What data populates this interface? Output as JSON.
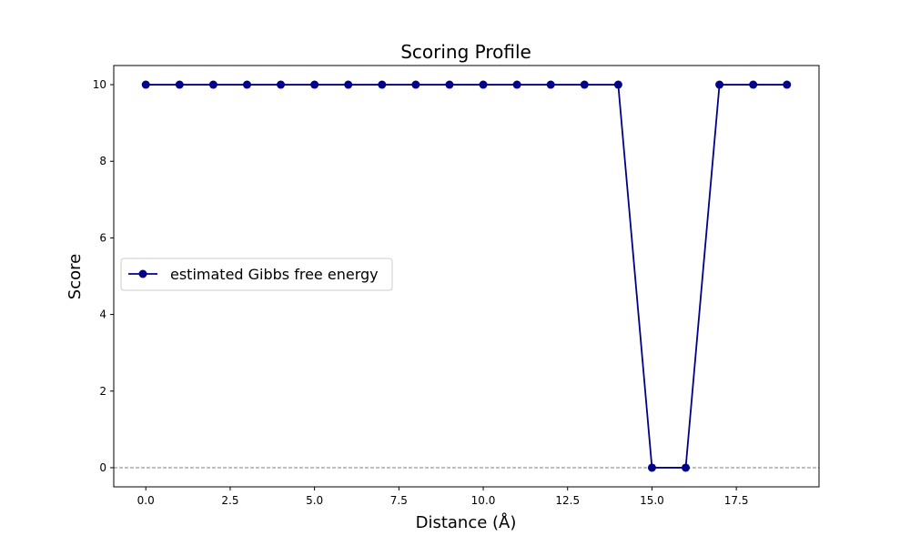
{
  "chart_data": {
    "type": "line",
    "title": "Scoring Profile",
    "xlabel": "Distance (Å)",
    "ylabel": "Score",
    "xlim": [
      -0.95,
      19.95
    ],
    "ylim": [
      -0.5,
      10.5
    ],
    "x_ticks": [
      0.0,
      2.5,
      5.0,
      7.5,
      10.0,
      12.5,
      15.0,
      17.5
    ],
    "x_tick_labels": [
      "0.0",
      "2.5",
      "5.0",
      "7.5",
      "10.0",
      "12.5",
      "15.0",
      "17.5"
    ],
    "y_ticks": [
      0,
      2,
      4,
      6,
      8,
      10
    ],
    "y_tick_labels": [
      "0",
      "2",
      "4",
      "6",
      "8",
      "10"
    ],
    "grid": false,
    "reference_line": {
      "y": 0,
      "style": "dashed",
      "color": "#808080"
    },
    "legend": {
      "position": "center-left"
    },
    "series": [
      {
        "name": "estimated Gibbs free energy",
        "color": "#00008b",
        "marker": "circle",
        "x": [
          0,
          1,
          2,
          3,
          4,
          5,
          6,
          7,
          8,
          9,
          10,
          11,
          12,
          13,
          14,
          15,
          16,
          17,
          18,
          19
        ],
        "y": [
          10,
          10,
          10,
          10,
          10,
          10,
          10,
          10,
          10,
          10,
          10,
          10,
          10,
          10,
          10,
          0,
          0,
          10,
          10,
          10
        ]
      }
    ]
  }
}
